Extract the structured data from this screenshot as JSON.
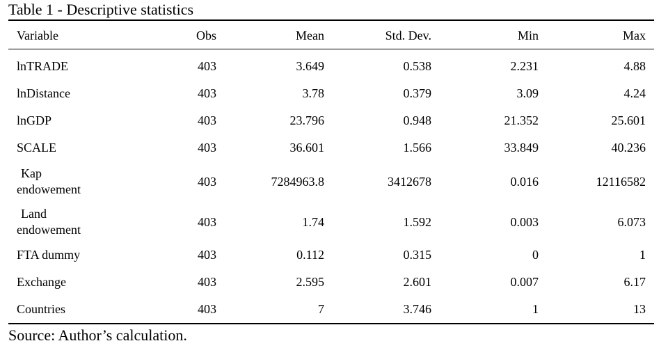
{
  "title": "Table 1 - Descriptive statistics",
  "headers": {
    "variable": "Variable",
    "obs": "Obs",
    "mean": "Mean",
    "std_dev": "Std. Dev.",
    "min": "Min",
    "max": "Max"
  },
  "rows": [
    {
      "variable": "lnTRADE",
      "obs": "403",
      "mean": "3.649",
      "std_dev": "0.538",
      "min": "2.231",
      "max": "4.88"
    },
    {
      "variable": "lnDistance",
      "obs": "403",
      "mean": "3.78",
      "std_dev": "0.379",
      "min": "3.09",
      "max": "4.24"
    },
    {
      "variable": "lnGDP",
      "obs": "403",
      "mean": "23.796",
      "std_dev": "0.948",
      "min": "21.352",
      "max": "25.601"
    },
    {
      "variable": "SCALE",
      "obs": "403",
      "mean": "36.601",
      "std_dev": "1.566",
      "min": "33.849",
      "max": "40.236"
    },
    {
      "variable_line1": "Kap",
      "variable_line2": "endowement",
      "obs": "403",
      "mean": "7284963.8",
      "std_dev": "3412678",
      "min": "0.016",
      "max": "12116582"
    },
    {
      "variable_line1": "Land",
      "variable_line2": "endowement",
      "obs": "403",
      "mean": "1.74",
      "std_dev": "1.592",
      "min": "0.003",
      "max": "6.073"
    },
    {
      "variable": "FTA dummy",
      "obs": "403",
      "mean": "0.112",
      "std_dev": "0.315",
      "min": "0",
      "max": "1"
    },
    {
      "variable": "Exchange",
      "obs": "403",
      "mean": "2.595",
      "std_dev": "2.601",
      "min": "0.007",
      "max": "6.17"
    },
    {
      "variable": "Countries",
      "obs": "403",
      "mean": "7",
      "std_dev": "3.746",
      "min": "1",
      "max": "13"
    }
  ],
  "source_note": "Source: Author’s calculation."
}
